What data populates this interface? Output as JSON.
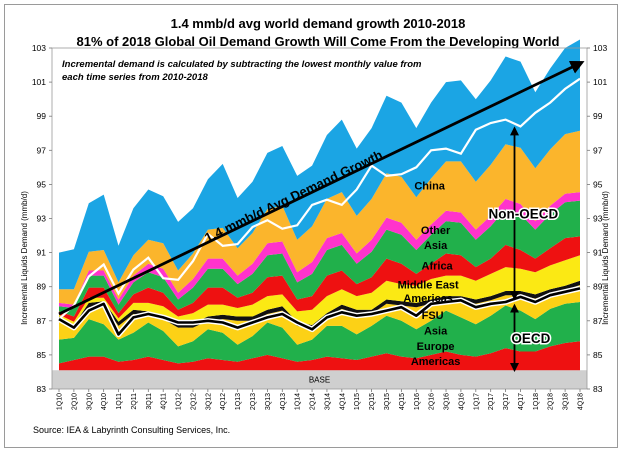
{
  "chart_data": {
    "type": "area",
    "title": "1.4 mmb/d avg world demand growth 2010-2018",
    "subtitle": "81% of 2018 Global Oil Demand Growth Will Come From the Developing World",
    "note": "Incremental demand is calculated by subtracting the lowest monthly value from each time series from 2010-2018",
    "ylabel_left": "Incremental Liquids Demand (mmb/d)",
    "ylabel_right": "Incremental Liquids Demand (mmb/d)",
    "source": "Source: IEA & Labyrinth Consulting Services, Inc.",
    "ylim": [
      83,
      103
    ],
    "yticks": [
      "83",
      "85",
      "87",
      "89",
      "91",
      "93",
      "95",
      "97",
      "99",
      "101",
      "103"
    ],
    "categories": [
      "1Q10",
      "2Q10",
      "3Q10",
      "4Q10",
      "1Q11",
      "2Q11",
      "3Q11",
      "4Q11",
      "1Q12",
      "2Q12",
      "3Q12",
      "4Q12",
      "1Q13",
      "2Q13",
      "3Q13",
      "4Q13",
      "1Q14",
      "2Q14",
      "3Q14",
      "4Q14",
      "1Q15",
      "2Q15",
      "3Q15",
      "4Q15",
      "1Q16",
      "2Q16",
      "3Q16",
      "4Q16",
      "1Q17",
      "2Q17",
      "3Q17",
      "4Q17",
      "1Q18",
      "2Q18",
      "3Q18",
      "4Q18"
    ],
    "base": {
      "name": "BASE",
      "value": 84.1
    },
    "series": [
      {
        "name": "Americas",
        "color": "#ee1111",
        "values": [
          0.4,
          0.6,
          0.8,
          0.8,
          0.5,
          0.6,
          0.8,
          0.6,
          0.4,
          0.5,
          0.7,
          0.6,
          0.5,
          0.7,
          0.9,
          0.7,
          0.5,
          0.6,
          0.8,
          0.7,
          0.6,
          0.8,
          1.0,
          0.8,
          0.7,
          0.9,
          1.1,
          0.9,
          0.8,
          1.0,
          1.3,
          1.1,
          1.1,
          1.4,
          1.6,
          1.7
        ]
      },
      {
        "name": "Europe",
        "color": "#21b04b",
        "values": [
          1.4,
          1.3,
          2.2,
          1.9,
          1.3,
          1.6,
          2.0,
          1.7,
          1.0,
          1.2,
          1.7,
          1.6,
          1.0,
          1.3,
          1.9,
          1.8,
          1.0,
          1.2,
          1.8,
          1.9,
          1.5,
          1.8,
          2.2,
          2.1,
          1.7,
          2.0,
          2.4,
          2.2,
          1.9,
          2.2,
          2.5,
          2.4,
          1.9,
          2.2,
          2.3,
          2.3
        ]
      },
      {
        "name": "Asia",
        "color": "#fcd116",
        "values": [
          1.1,
          0.5,
          0.7,
          1.1,
          0.8,
          1.1,
          0.4,
          0.7,
          1.1,
          0.8,
          0.5,
          0.8,
          1.4,
          0.9,
          0.5,
          1.0,
          1.1,
          0.6,
          0.5,
          1.0,
          1.2,
          0.7,
          0.7,
          0.9,
          1.3,
          1.0,
          0.6,
          1.0,
          1.2,
          0.9,
          0.6,
          0.9,
          1.2,
          0.9,
          0.8,
          1.0
        ]
      },
      {
        "name": "FSU",
        "color": "#111111",
        "values": [
          0.25,
          0.25,
          0.25,
          0.25,
          0.25,
          0.25,
          0.25,
          0.25,
          0.25,
          0.25,
          0.25,
          0.25,
          0.25,
          0.25,
          0.25,
          0.25,
          0.25,
          0.25,
          0.25,
          0.25,
          0.25,
          0.25,
          0.25,
          0.25,
          0.25,
          0.25,
          0.25,
          0.25,
          0.25,
          0.25,
          0.25,
          0.25,
          0.25,
          0.25,
          0.25,
          0.25
        ]
      },
      {
        "name": "Americas",
        "color": "#fbe914",
        "values": [
          0.1,
          0.2,
          0.3,
          0.2,
          0.2,
          0.4,
          0.5,
          0.5,
          0.4,
          0.6,
          0.7,
          0.6,
          0.5,
          0.7,
          0.8,
          0.7,
          0.6,
          0.9,
          1.0,
          0.9,
          0.8,
          1.0,
          1.1,
          1.0,
          1.0,
          1.2,
          1.2,
          1.2,
          1.1,
          1.3,
          1.4,
          1.3,
          1.3,
          1.4,
          1.5,
          1.5
        ]
      },
      {
        "name": "Middle East",
        "color": "#ee1111",
        "values": [
          0.2,
          0.3,
          0.6,
          0.6,
          0.3,
          0.5,
          0.9,
          0.8,
          0.4,
          0.6,
          1.0,
          1.0,
          0.6,
          0.7,
          1.1,
          1.1,
          0.7,
          0.8,
          1.2,
          1.1,
          0.7,
          0.9,
          1.3,
          1.2,
          0.7,
          0.9,
          1.3,
          1.2,
          0.8,
          0.9,
          1.3,
          1.1,
          0.8,
          1.0,
          1.3,
          1.1
        ]
      },
      {
        "name": "Africa",
        "color": "#21b04b",
        "values": [
          0.3,
          0.5,
          0.7,
          0.7,
          0.5,
          0.7,
          0.9,
          0.9,
          0.6,
          0.9,
          1.1,
          1.1,
          0.8,
          1.1,
          1.3,
          1.3,
          1.0,
          1.3,
          1.5,
          1.5,
          1.2,
          1.5,
          1.7,
          1.7,
          1.4,
          1.7,
          1.9,
          1.9,
          1.6,
          1.9,
          2.1,
          2.1,
          1.7,
          2.0,
          2.1,
          2.1
        ]
      },
      {
        "name": "Other Asia",
        "color": "#ff33cc",
        "values": [
          0.2,
          0.2,
          0.3,
          0.3,
          0.3,
          0.4,
          0.5,
          0.5,
          0.4,
          0.5,
          0.6,
          0.6,
          0.5,
          0.6,
          0.7,
          0.7,
          0.6,
          0.7,
          0.7,
          0.7,
          0.6,
          0.7,
          0.7,
          0.7,
          0.6,
          0.6,
          0.6,
          0.6,
          0.6,
          0.6,
          0.6,
          0.6,
          0.5,
          0.5,
          0.5,
          0.5
        ]
      },
      {
        "name": "China",
        "color": "#fbb52c",
        "values": [
          0.8,
          0.9,
          1.1,
          1.2,
          1.0,
          1.2,
          1.4,
          1.5,
          1.3,
          1.5,
          1.7,
          1.8,
          1.6,
          1.8,
          2.0,
          2.1,
          1.9,
          2.1,
          2.3,
          2.4,
          2.2,
          2.4,
          2.6,
          2.7,
          2.5,
          2.7,
          2.9,
          3.0,
          2.8,
          3.0,
          3.2,
          3.3,
          3.1,
          3.3,
          3.5,
          3.6
        ]
      },
      {
        "name": "China",
        "color": "#1ba5e4",
        "values": [
          2.15,
          2.35,
          2.85,
          3.25,
          2.15,
          2.75,
          2.95,
          2.75,
          2.85,
          2.65,
          2.95,
          3.75,
          2.95,
          3.0,
          3.3,
          3.5,
          3.75,
          3.55,
          3.75,
          4.25,
          3.95,
          4.15,
          4.55,
          4.35,
          4.05,
          4.45,
          4.65,
          4.75,
          4.85,
          4.95,
          5.15,
          5.05,
          4.45,
          4.75,
          5.05,
          5.35
        ]
      }
    ],
    "world_total": [
      87.1,
      87.9,
      89.6,
      90.3,
      88.6,
      90.0,
      90.7,
      89.5,
      89.4,
      90.5,
      92.1,
      91.4,
      91.5,
      92.5,
      92.9,
      92.4,
      92.6,
      93.8,
      94.1,
      93.8,
      94.7,
      96.1,
      95.5,
      95.6,
      96.0,
      97.0,
      97.1,
      96.8,
      98.2,
      98.6,
      98.8,
      98.4,
      99.2,
      99.8,
      100.6,
      101.2
    ],
    "oecd_total": [
      87.1,
      86.6,
      87.6,
      88.0,
      86.2,
      87.2,
      87.4,
      87.2,
      86.9,
      86.9,
      87.0,
      86.9,
      86.6,
      86.9,
      87.2,
      87.4,
      86.9,
      86.5,
      87.2,
      87.5,
      87.3,
      87.4,
      87.6,
      87.8,
      87.3,
      88.0,
      88.1,
      88.2,
      87.8,
      88.0,
      88.1,
      88.4,
      88.1,
      88.5,
      88.7,
      88.9
    ],
    "trend": {
      "label": "1.4 mmb/d Avg Demand Growth",
      "from": [
        0,
        87.4
      ],
      "to": [
        35,
        101.1
      ]
    },
    "area_labels": [
      {
        "text": "China",
        "x": 24.9,
        "y": 94.7
      },
      {
        "text": "Other",
        "x": 25.3,
        "y": 92.1
      },
      {
        "text": "Asia",
        "x": 25.3,
        "y": 91.2
      },
      {
        "text": "Africa",
        "x": 25.4,
        "y": 90.0
      },
      {
        "text": "Middle East",
        "x": 24.8,
        "y": 88.9
      },
      {
        "text": "Americas",
        "x": 24.8,
        "y": 88.1
      },
      {
        "text": "FSU",
        "x": 25.1,
        "y": 87.1
      },
      {
        "text": "Asia",
        "x": 25.3,
        "y": 86.2
      },
      {
        "text": "Europe",
        "x": 25.3,
        "y": 85.3
      },
      {
        "text": "Americas",
        "x": 25.3,
        "y": 84.4
      }
    ],
    "group_labels": [
      {
        "text": "Non-OECD",
        "x": 31.2,
        "y": 93.0
      },
      {
        "text": "OECD",
        "x": 31.7,
        "y": 85.7
      }
    ],
    "arrows": [
      {
        "x": 30.6,
        "y1": 98.3,
        "y2": 88.3
      },
      {
        "x": 30.6,
        "y1": 87.9,
        "y2": 84.1
      }
    ],
    "legend": "none",
    "grid": false
  }
}
